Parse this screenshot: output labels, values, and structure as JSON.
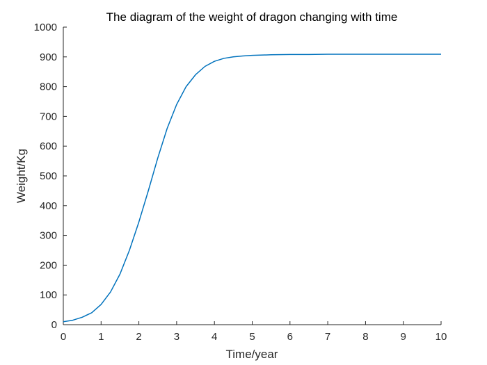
{
  "chart_data": {
    "type": "line",
    "title": "The diagram of the weight of dragon changing with time",
    "xlabel": "Time/year",
    "ylabel": "Weight/Kg",
    "xlim": [
      0,
      10
    ],
    "ylim": [
      0,
      1000
    ],
    "x_ticks": [
      "0",
      "1",
      "2",
      "3",
      "4",
      "5",
      "6",
      "7",
      "8",
      "9",
      "10"
    ],
    "y_ticks": [
      "0",
      "100",
      "200",
      "300",
      "400",
      "500",
      "600",
      "700",
      "800",
      "900",
      "1000"
    ],
    "grid": false,
    "line_color": "#0072BD",
    "series": [
      {
        "x": [
          0,
          0.25,
          0.5,
          0.75,
          1,
          1.25,
          1.5,
          1.75,
          2,
          2.25,
          2.5,
          2.75,
          3,
          3.25,
          3.5,
          3.75,
          4,
          4.25,
          4.5,
          4.75,
          5,
          5.5,
          6,
          6.5,
          7,
          7.5,
          8,
          8.5,
          9,
          9.5,
          10
        ],
        "y": [
          10,
          15,
          25,
          40,
          68,
          110,
          170,
          250,
          345,
          450,
          560,
          660,
          740,
          800,
          840,
          868,
          885,
          895,
          900,
          903,
          905,
          907,
          908,
          908,
          909,
          909,
          909,
          909,
          909,
          909,
          909
        ]
      }
    ]
  }
}
